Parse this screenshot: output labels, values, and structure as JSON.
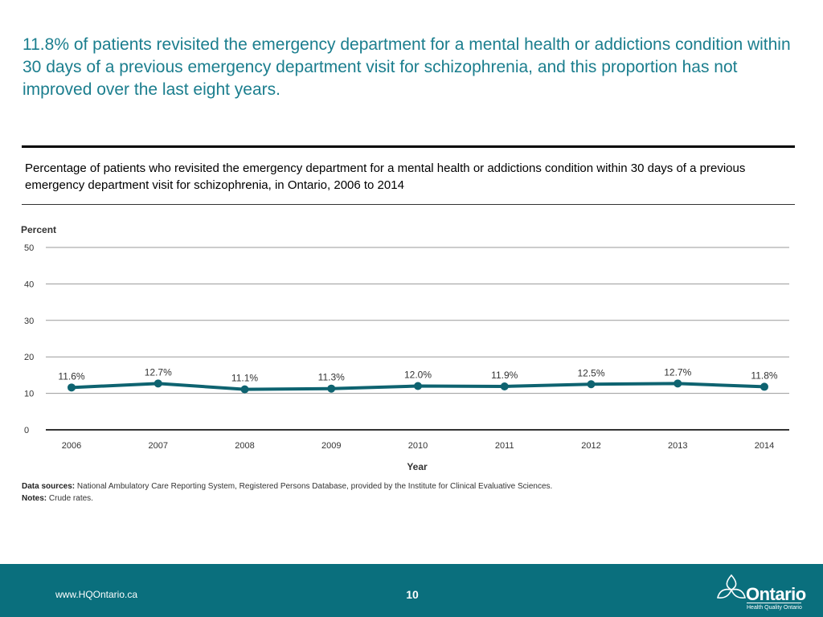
{
  "headline": "11.8% of patients revisited the emergency department for a mental health or addictions condition within 30 days of a previous emergency department visit for schizophrenia, and this proportion has not improved over the last eight years.",
  "subtitle": "Percentage of patients who revisited the emergency department for a mental health or addictions condition within 30 days of a previous emergency department visit for schizophrenia, in Ontario, 2006 to 2014",
  "chart_data": {
    "type": "line",
    "title": "Percentage of patients who revisited the emergency department for a mental health or addictions condition within 30 days of a previous emergency department visit for schizophrenia, in Ontario, 2006 to 2014",
    "xlabel": "Year",
    "ylabel": "Percent",
    "ylim": [
      0,
      50
    ],
    "yticks": [
      0,
      10,
      20,
      30,
      40,
      50
    ],
    "grid": true,
    "categories": [
      "2006",
      "2007",
      "2008",
      "2009",
      "2010",
      "2011",
      "2012",
      "2013",
      "2014"
    ],
    "series": [
      {
        "name": "Revisit rate",
        "color": "#0e6370",
        "values": [
          11.6,
          12.7,
          11.1,
          11.3,
          12.0,
          11.9,
          12.5,
          12.7,
          11.8
        ],
        "labels": [
          "11.6%",
          "12.7%",
          "11.1%",
          "11.3%",
          "12.0%",
          "11.9%",
          "12.5%",
          "12.7%",
          "11.8%"
        ]
      }
    ]
  },
  "notes": {
    "sources_label": "Data sources:",
    "sources_text": "National Ambulatory Care Reporting System, Registered Persons Database, provided by the Institute for Clinical Evaluative Sciences.",
    "notes_label": "Notes:",
    "notes_text": "Crude rates."
  },
  "footer": {
    "url": "www.HQOntario.ca",
    "page_number": "10",
    "logo_word": "Ontario",
    "logo_tagline": "Health Quality Ontario",
    "background_color": "#0a6f7d"
  },
  "colors": {
    "headline": "#1b7e8e",
    "grid": "#9a9a9a",
    "baseline": "#333333"
  }
}
